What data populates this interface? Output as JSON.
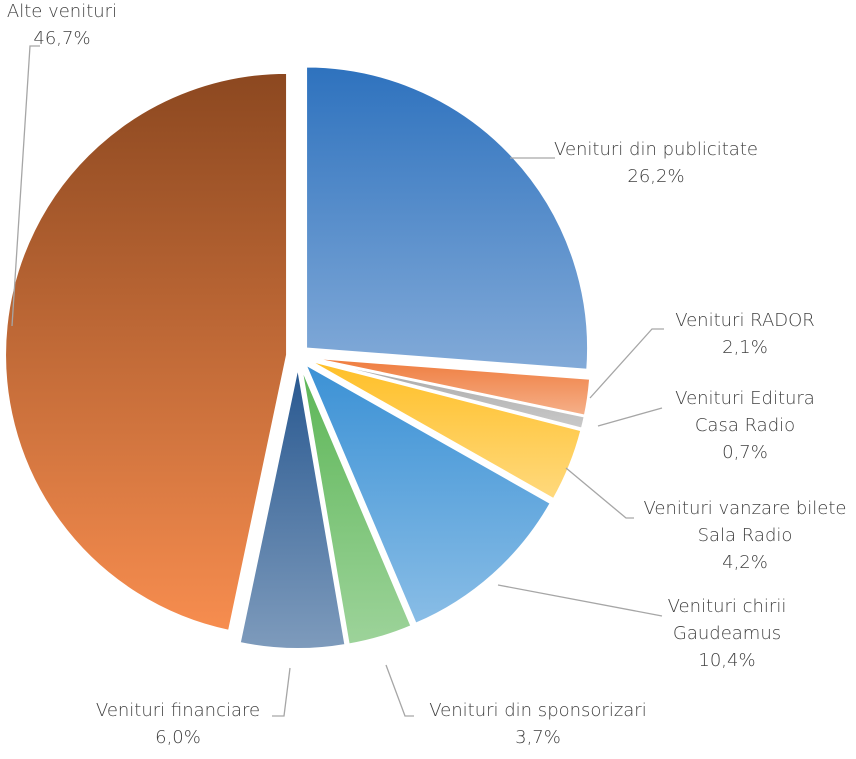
{
  "chart_data": {
    "type": "pie",
    "categories": [
      "Venituri din publicitate",
      "Venituri RADOR",
      "Venituri Editura\nCasa Radio",
      "Venituri vanzare bilete\nSala Radio",
      "Venituri chirii\nGaudeamus",
      "Venituri din sponsorizari",
      "Venituri financiare",
      "Alte venituri"
    ],
    "values": [
      26.2,
      2.1,
      0.7,
      4.2,
      10.4,
      3.7,
      6.0,
      46.7
    ],
    "value_labels": [
      "26,2%",
      "2,1%",
      "0,7%",
      "4,2%",
      "10,4%",
      "3,7%",
      "6,0%",
      "46,7%"
    ],
    "colors": [
      "#2e72be",
      "#ef7b3c",
      "#a5a5a5",
      "#ffbf26",
      "#3b91d5",
      "#5cb656",
      "#285890",
      "#8c4820"
    ]
  }
}
